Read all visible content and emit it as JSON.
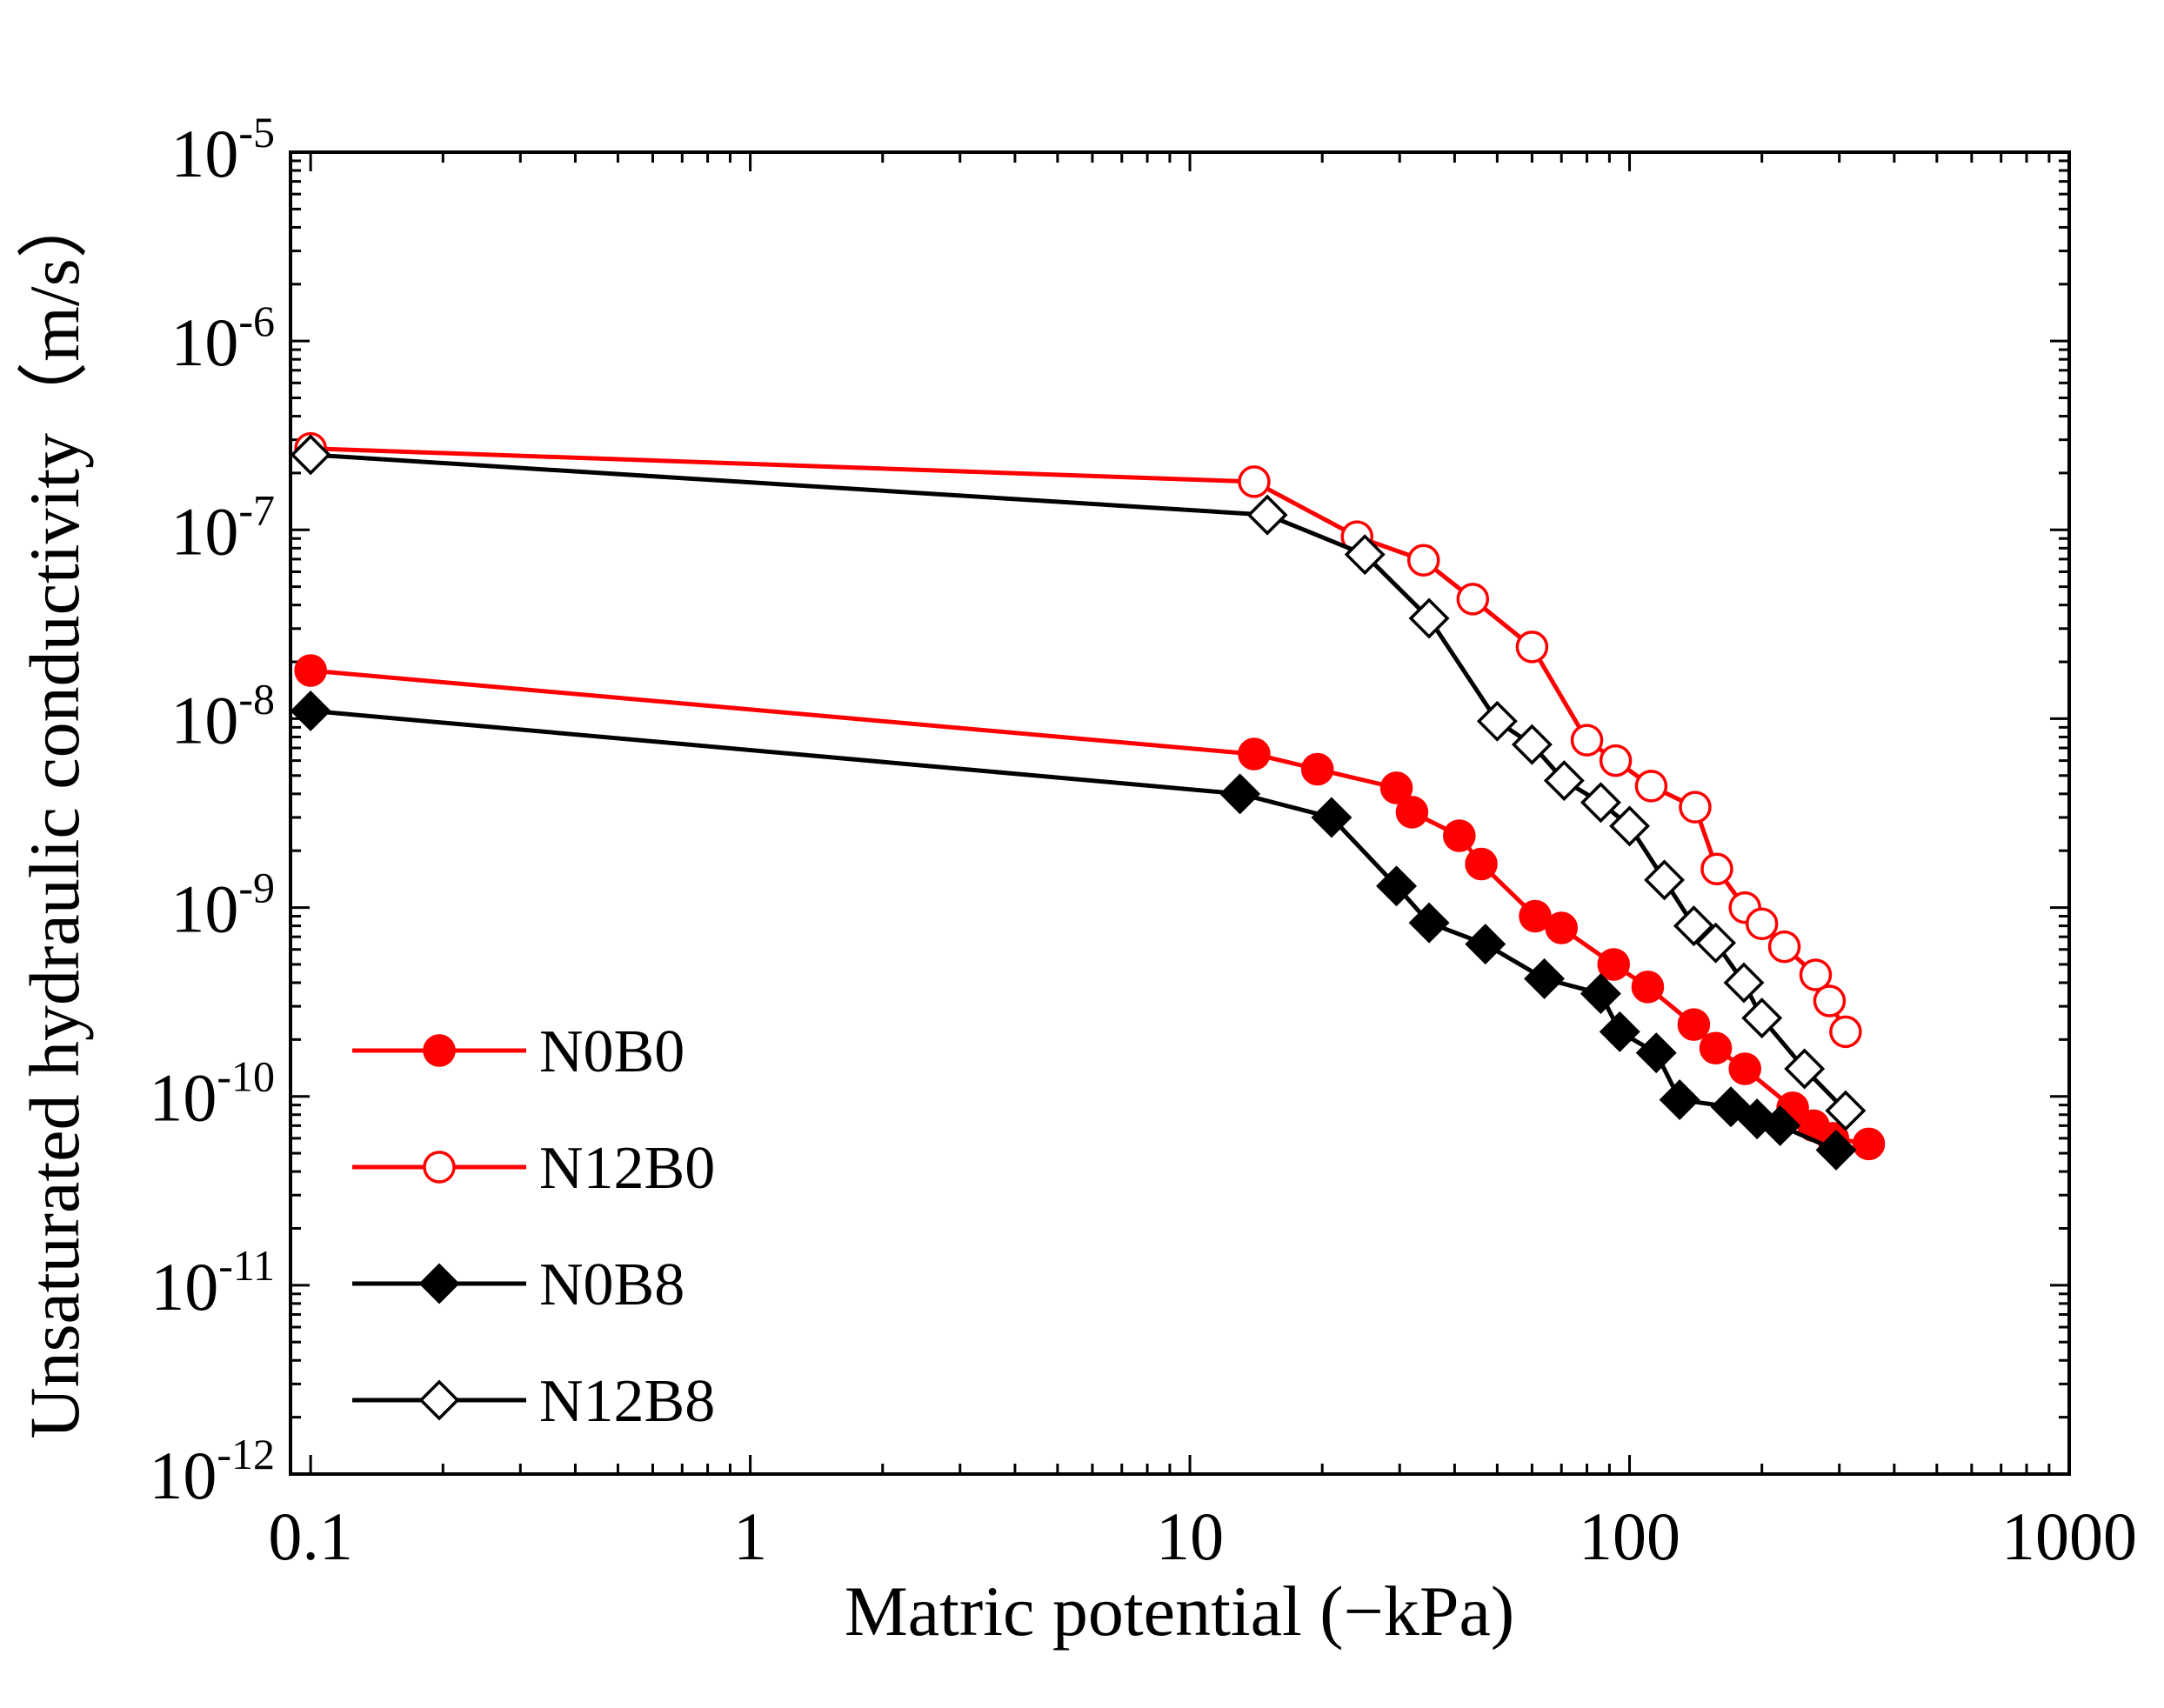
{
  "chart_data": {
    "type": "line",
    "title": "",
    "xlabel": "Matric potential (−kPa)",
    "ylabel": "Unsaturated hydraulic conductivity（m/s）",
    "xscale": "log",
    "yscale": "log",
    "xlim": [
      0.09,
      1000
    ],
    "ylim": [
      1e-12,
      1e-05
    ],
    "x_ticks": [
      0.1,
      1,
      10,
      100,
      1000
    ],
    "x_tick_labels": [
      "0.1",
      "1",
      "10",
      "100",
      "1000"
    ],
    "y_ticks": [
      {
        "value": 1e-12,
        "base": "10",
        "exp": "-12"
      },
      {
        "value": 1e-11,
        "base": "10",
        "exp": "-11"
      },
      {
        "value": 1e-10,
        "base": "10",
        "exp": "-10"
      },
      {
        "value": 1e-09,
        "base": "10",
        "exp": "-9"
      },
      {
        "value": 1e-08,
        "base": "10",
        "exp": "-8"
      },
      {
        "value": 1e-07,
        "base": "10",
        "exp": "-7"
      },
      {
        "value": 1e-06,
        "base": "10",
        "exp": "-6"
      },
      {
        "value": 1e-05,
        "base": "10",
        "exp": "-5"
      }
    ],
    "legend_position": "bottom-left",
    "series": [
      {
        "name": "N0B0",
        "color": "#ff0000",
        "marker": "circle",
        "filled": true,
        "x": [
          0.1,
          14,
          19.5,
          29.5,
          32,
          41,
          46,
          61,
          70,
          92,
          110,
          140,
          157,
          183,
          235,
          262,
          290,
          350
        ],
        "y": [
          1.8e-08,
          6.5e-09,
          5.4e-09,
          4.3e-09,
          3.2e-09,
          2.4e-09,
          1.7e-09,
          9e-10,
          7.8e-10,
          5e-10,
          3.8e-10,
          2.4e-10,
          1.8e-10,
          1.4e-10,
          8.7e-11,
          7e-11,
          6e-11,
          5.6e-11
        ]
      },
      {
        "name": "N12B0",
        "color": "#ff0000",
        "marker": "circle",
        "filled": false,
        "x": [
          0.1,
          14,
          24,
          34,
          44,
          60,
          80,
          93,
          112,
          141,
          158,
          183,
          200,
          225,
          265,
          285,
          310
        ],
        "y": [
          2.7e-07,
          1.8e-07,
          9.2e-08,
          6.9e-08,
          4.3e-08,
          2.4e-08,
          7.7e-09,
          6e-09,
          4.4e-09,
          3.4e-09,
          1.6e-09,
          1e-09,
          8.2e-10,
          6.2e-10,
          4.4e-10,
          3.2e-10,
          2.2e-10
        ]
      },
      {
        "name": "N0B8",
        "color": "#000000",
        "marker": "diamond",
        "filled": true,
        "x": [
          0.1,
          13,
          21,
          29.5,
          35,
          47,
          64,
          86,
          95,
          115,
          130,
          170,
          195,
          220,
          295
        ],
        "y": [
          1.1e-08,
          4e-09,
          3e-09,
          1.3e-09,
          8.3e-10,
          6.4e-10,
          4.2e-10,
          3.5e-10,
          2.2e-10,
          1.7e-10,
          9.6e-11,
          8.8e-11,
          7.6e-11,
          7e-11,
          5.2e-11
        ]
      },
      {
        "name": "N12B8",
        "color": "#000000",
        "marker": "diamond",
        "filled": false,
        "x": [
          0.1,
          15,
          25,
          35,
          50,
          60,
          71,
          86,
          100,
          120,
          140,
          157,
          182,
          200,
          250,
          310
        ],
        "y": [
          2.5e-07,
          1.2e-07,
          7.4e-08,
          3.4e-08,
          9.7e-09,
          7.3e-09,
          4.7e-09,
          3.6e-09,
          2.7e-09,
          1.4e-09,
          8e-10,
          6.5e-10,
          4e-10,
          2.6e-10,
          1.4e-10,
          8.4e-11
        ]
      }
    ]
  }
}
